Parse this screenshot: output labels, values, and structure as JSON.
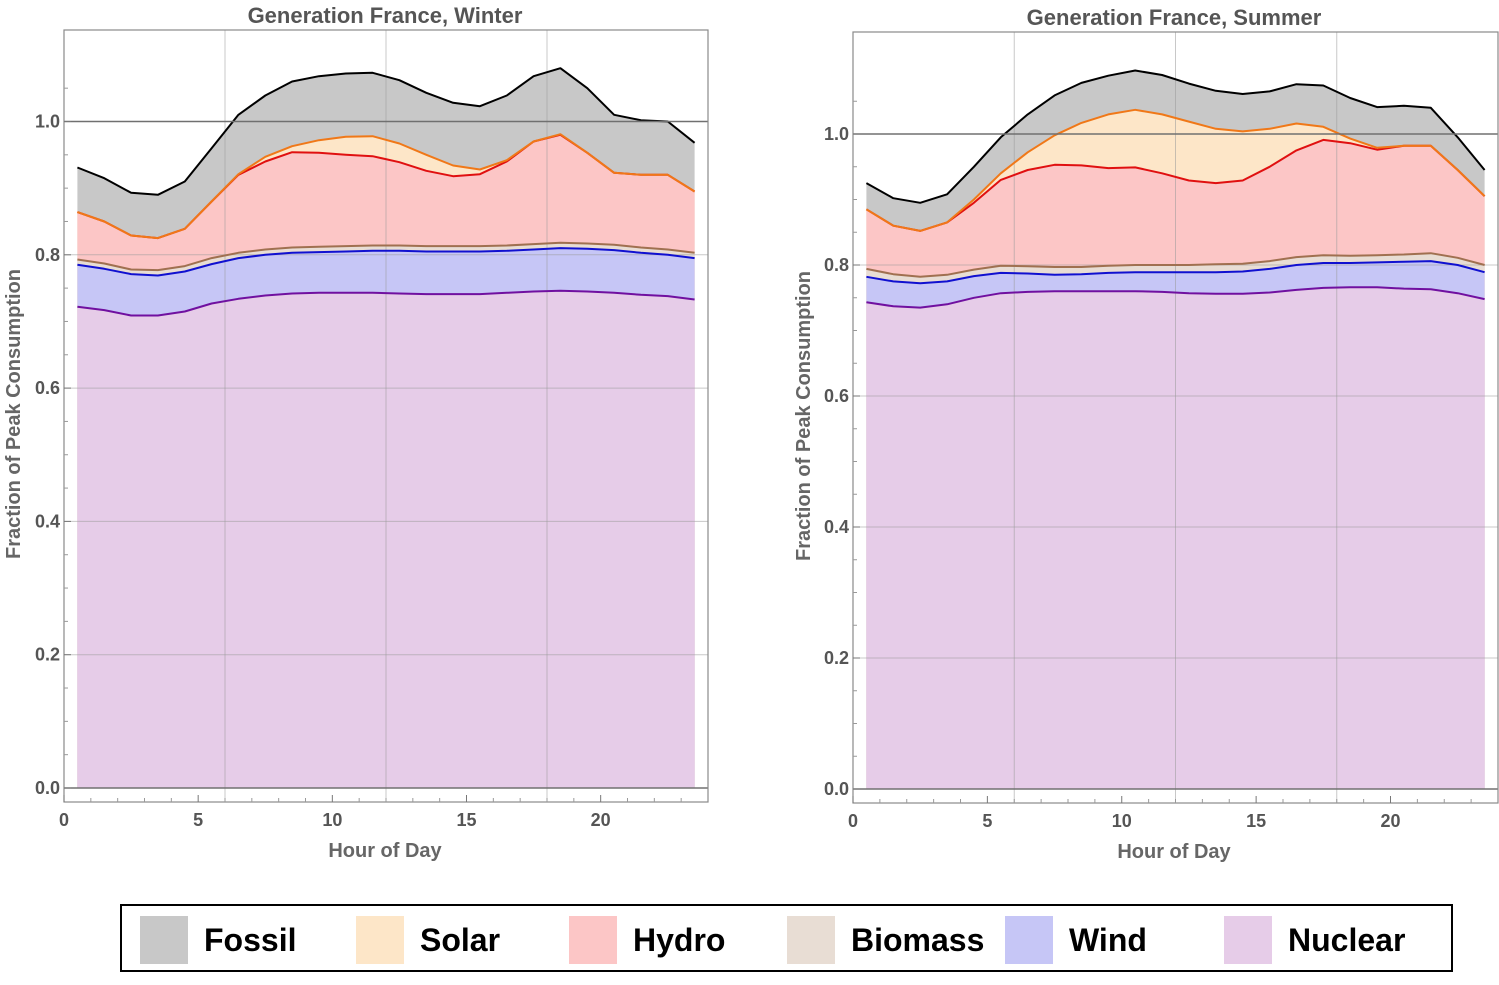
{
  "colors": {
    "fossil_fill": "#c8c8c8",
    "fossil_line": "#000000",
    "solar_fill": "#fde6c8",
    "solar_line": "#f07818",
    "hydro_fill": "#fcc6c6",
    "hydro_line": "#e01010",
    "biomass_fill": "#e8ddd4",
    "biomass_line": "#a07050",
    "wind_fill": "#c6c6f6",
    "wind_line": "#1010d0",
    "nuclear_fill": "#e6cce8",
    "nuclear_line": "#7010a0"
  },
  "legend": [
    {
      "label": "Fossil",
      "color": "#c8c8c8"
    },
    {
      "label": "Solar",
      "color": "#fde6c8"
    },
    {
      "label": "Hydro",
      "color": "#fcc6c6"
    },
    {
      "label": "Biomass",
      "color": "#e8ddd4"
    },
    {
      "label": "Wind",
      "color": "#c6c6f6"
    },
    {
      "label": "Nuclear",
      "color": "#e6cce8"
    }
  ],
  "chart_data": [
    {
      "type": "area",
      "stacked": true,
      "title": "Generation France,  Winter",
      "xlabel": "Hour of Day",
      "ylabel": "Fraction of Peak Consumption",
      "xlim": [
        0,
        24
      ],
      "ylim": [
        0,
        1.1
      ],
      "xticks": [
        "0",
        "5",
        "10",
        "15",
        "20"
      ],
      "yticks": [
        "0.0",
        "0.2",
        "0.4",
        "0.6",
        "0.8",
        "1.0"
      ],
      "reference_line_y": 1.0,
      "grid": true,
      "x": [
        0.5,
        1.5,
        2.5,
        3.5,
        4.5,
        5.5,
        6.5,
        7.5,
        8.5,
        9.5,
        10.5,
        11.5,
        12.5,
        13.5,
        14.5,
        15.5,
        16.5,
        17.5,
        18.5,
        19.5,
        20.5,
        21.5,
        22.5,
        23.5
      ],
      "cumulative_series": [
        {
          "name": "Nuclear",
          "values": [
            0.722,
            0.717,
            0.709,
            0.709,
            0.715,
            0.727,
            0.734,
            0.739,
            0.742,
            0.743,
            0.743,
            0.743,
            0.742,
            0.741,
            0.741,
            0.741,
            0.743,
            0.745,
            0.746,
            0.745,
            0.743,
            0.74,
            0.738,
            0.733
          ]
        },
        {
          "name": "Wind",
          "values": [
            0.785,
            0.779,
            0.771,
            0.769,
            0.775,
            0.786,
            0.795,
            0.8,
            0.803,
            0.804,
            0.805,
            0.806,
            0.806,
            0.805,
            0.805,
            0.805,
            0.806,
            0.808,
            0.81,
            0.809,
            0.807,
            0.803,
            0.8,
            0.795
          ]
        },
        {
          "name": "Biomass",
          "values": [
            0.793,
            0.787,
            0.778,
            0.777,
            0.783,
            0.795,
            0.803,
            0.808,
            0.811,
            0.812,
            0.813,
            0.814,
            0.814,
            0.813,
            0.813,
            0.813,
            0.814,
            0.816,
            0.818,
            0.817,
            0.815,
            0.811,
            0.808,
            0.803
          ]
        },
        {
          "name": "Hydro",
          "values": [
            0.864,
            0.85,
            0.829,
            0.825,
            0.839,
            0.88,
            0.92,
            0.94,
            0.954,
            0.953,
            0.95,
            0.948,
            0.939,
            0.926,
            0.918,
            0.921,
            0.94,
            0.97,
            0.98,
            0.953,
            0.923,
            0.92,
            0.92,
            0.895
          ]
        },
        {
          "name": "Solar",
          "values": [
            0.864,
            0.85,
            0.829,
            0.825,
            0.839,
            0.88,
            0.921,
            0.947,
            0.963,
            0.972,
            0.977,
            0.978,
            0.967,
            0.95,
            0.934,
            0.928,
            0.942,
            0.97,
            0.981,
            0.953,
            0.923,
            0.92,
            0.92,
            0.895
          ]
        },
        {
          "name": "Fossil",
          "values": [
            0.931,
            0.915,
            0.893,
            0.89,
            0.91,
            0.96,
            1.01,
            1.039,
            1.06,
            1.068,
            1.072,
            1.073,
            1.062,
            1.043,
            1.028,
            1.023,
            1.039,
            1.068,
            1.08,
            1.05,
            1.01,
            1.002,
            1.0,
            0.968
          ]
        }
      ]
    },
    {
      "type": "area",
      "stacked": true,
      "title": "Generation France,  Summer",
      "xlabel": "Hour of Day",
      "ylabel": "Fraction of Peak Consumption",
      "xlim": [
        0,
        24
      ],
      "ylim": [
        0,
        1.1
      ],
      "xticks": [
        "0",
        "5",
        "10",
        "15",
        "20"
      ],
      "yticks": [
        "0.0",
        "0.2",
        "0.4",
        "0.6",
        "0.8",
        "1.0"
      ],
      "reference_line_y": 1.0,
      "grid": true,
      "x": [
        0.5,
        1.5,
        2.5,
        3.5,
        4.5,
        5.5,
        6.5,
        7.5,
        8.5,
        9.5,
        10.5,
        11.5,
        12.5,
        13.5,
        14.5,
        15.5,
        16.5,
        17.5,
        18.5,
        19.5,
        20.5,
        21.5,
        22.5,
        23.5
      ],
      "cumulative_series": [
        {
          "name": "Nuclear",
          "values": [
            0.743,
            0.737,
            0.735,
            0.74,
            0.75,
            0.757,
            0.759,
            0.76,
            0.76,
            0.76,
            0.76,
            0.759,
            0.757,
            0.756,
            0.756,
            0.758,
            0.762,
            0.765,
            0.766,
            0.766,
            0.764,
            0.763,
            0.757,
            0.748
          ]
        },
        {
          "name": "Wind",
          "values": [
            0.782,
            0.775,
            0.772,
            0.775,
            0.783,
            0.788,
            0.787,
            0.785,
            0.786,
            0.788,
            0.789,
            0.789,
            0.789,
            0.789,
            0.79,
            0.794,
            0.8,
            0.803,
            0.803,
            0.804,
            0.805,
            0.806,
            0.8,
            0.789
          ]
        },
        {
          "name": "Biomass",
          "values": [
            0.794,
            0.786,
            0.782,
            0.785,
            0.793,
            0.799,
            0.798,
            0.797,
            0.797,
            0.799,
            0.8,
            0.8,
            0.8,
            0.801,
            0.802,
            0.806,
            0.812,
            0.815,
            0.814,
            0.815,
            0.816,
            0.818,
            0.811,
            0.8
          ]
        },
        {
          "name": "Hydro",
          "values": [
            0.885,
            0.86,
            0.852,
            0.865,
            0.895,
            0.93,
            0.945,
            0.953,
            0.952,
            0.948,
            0.949,
            0.94,
            0.929,
            0.925,
            0.929,
            0.95,
            0.975,
            0.991,
            0.986,
            0.976,
            0.982,
            0.982,
            0.945,
            0.905
          ]
        },
        {
          "name": "Solar",
          "values": [
            0.885,
            0.86,
            0.852,
            0.865,
            0.9,
            0.94,
            0.972,
            0.998,
            1.017,
            1.03,
            1.037,
            1.03,
            1.019,
            1.008,
            1.004,
            1.008,
            1.016,
            1.011,
            0.993,
            0.979,
            0.982,
            0.982,
            0.945,
            0.905
          ]
        },
        {
          "name": "Fossil",
          "values": [
            0.925,
            0.902,
            0.895,
            0.908,
            0.95,
            0.995,
            1.03,
            1.059,
            1.078,
            1.089,
            1.097,
            1.09,
            1.077,
            1.066,
            1.061,
            1.065,
            1.076,
            1.074,
            1.055,
            1.041,
            1.043,
            1.04,
            0.995,
            0.945
          ]
        }
      ]
    }
  ]
}
